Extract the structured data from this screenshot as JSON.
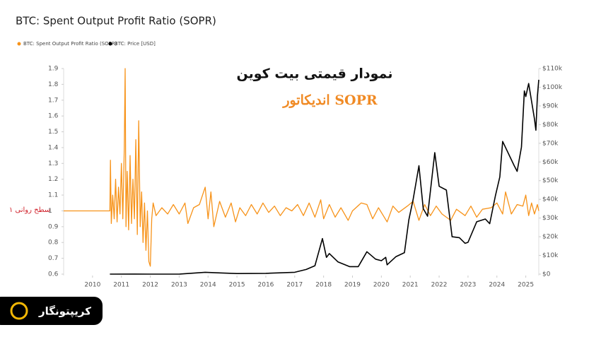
{
  "chart_data": {
    "type": "line",
    "title": "BTC: Spent Output Profit Ratio (SOPR)",
    "annotations": [
      "نمودار قیمتی بیت کوین",
      "اندیکاتور SOPR",
      "سطح روانی ۱"
    ],
    "logo": "کریپتونگار",
    "xlim": [
      2009,
      2025.45
    ],
    "xticks": [
      2010,
      2011,
      2012,
      2013,
      2014,
      2015,
      2016,
      2017,
      2018,
      2019,
      2020,
      2021,
      2022,
      2023,
      2024,
      2025
    ],
    "ylim": [
      0.6,
      1.9
    ],
    "yticks": [
      0.6,
      0.7,
      0.8,
      0.9,
      1,
      1.1,
      1.2,
      1.3,
      1.4,
      1.5,
      1.6,
      1.7,
      1.8,
      1.9
    ],
    "y2lim": [
      0,
      110000
    ],
    "y2ticks": [
      {
        "value": 0,
        "label": "$0"
      },
      {
        "value": 10000,
        "label": "$10k"
      },
      {
        "value": 20000,
        "label": "$20k"
      },
      {
        "value": 30000,
        "label": "$30k"
      },
      {
        "value": 40000,
        "label": "$40k"
      },
      {
        "value": 50000,
        "label": "$50k"
      },
      {
        "value": 60000,
        "label": "$60k"
      },
      {
        "value": 70000,
        "label": "$70k"
      },
      {
        "value": 80000,
        "label": "$80k"
      },
      {
        "value": 90000,
        "label": "$90k"
      },
      {
        "value": 100000,
        "label": "$100k"
      },
      {
        "value": 110000,
        "label": "$110k"
      }
    ],
    "series": [
      {
        "name": "BTC: Spent Output Profit Ratio (SOPR)",
        "color": "#f7931a",
        "axis": "y",
        "x": [
          2009.0,
          2010.6,
          2010.62,
          2010.65,
          2010.7,
          2010.75,
          2010.8,
          2010.85,
          2010.9,
          2010.95,
          2011.0,
          2011.05,
          2011.1,
          2011.13,
          2011.16,
          2011.2,
          2011.25,
          2011.3,
          2011.35,
          2011.4,
          2011.45,
          2011.5,
          2011.55,
          2011.6,
          2011.65,
          2011.7,
          2011.75,
          2011.8,
          2011.85,
          2011.9,
          2011.95,
          2012.0,
          2012.05,
          2012.1,
          2012.2,
          2012.4,
          2012.6,
          2012.8,
          2013.0,
          2013.2,
          2013.3,
          2013.5,
          2013.7,
          2013.9,
          2014.0,
          2014.1,
          2014.2,
          2014.4,
          2014.6,
          2014.8,
          2014.95,
          2015.1,
          2015.3,
          2015.5,
          2015.7,
          2015.9,
          2016.1,
          2016.3,
          2016.5,
          2016.7,
          2016.9,
          2017.1,
          2017.3,
          2017.5,
          2017.7,
          2017.9,
          2018.0,
          2018.2,
          2018.4,
          2018.6,
          2018.85,
          2019.0,
          2019.3,
          2019.5,
          2019.7,
          2019.9,
          2020.2,
          2020.4,
          2020.6,
          2020.9,
          2021.1,
          2021.3,
          2021.5,
          2021.7,
          2021.9,
          2022.1,
          2022.4,
          2022.6,
          2022.9,
          2023.1,
          2023.3,
          2023.5,
          2023.8,
          2024.0,
          2024.2,
          2024.3,
          2024.5,
          2024.7,
          2024.9,
          2025.0,
          2025.1,
          2025.2,
          2025.3,
          2025.4,
          2025.45
        ],
        "values": [
          1,
          1,
          1.32,
          0.92,
          1.1,
          0.95,
          1.2,
          0.93,
          1.15,
          0.98,
          1.3,
          0.95,
          1.4,
          1.9,
          0.9,
          1.25,
          0.88,
          1.35,
          0.92,
          1.2,
          0.95,
          1.45,
          0.85,
          1.57,
          0.9,
          1.12,
          0.8,
          1.05,
          0.75,
          1.0,
          0.68,
          0.65,
          0.95,
          1.05,
          0.97,
          1.02,
          0.98,
          1.04,
          0.98,
          1.05,
          0.92,
          1.02,
          1.04,
          1.15,
          0.95,
          1.12,
          0.9,
          1.06,
          0.96,
          1.05,
          0.93,
          1.02,
          0.97,
          1.04,
          0.98,
          1.05,
          0.99,
          1.03,
          0.97,
          1.02,
          1.0,
          1.04,
          0.97,
          1.05,
          0.96,
          1.07,
          0.95,
          1.04,
          0.96,
          1.02,
          0.94,
          1.0,
          1.05,
          1.04,
          0.95,
          1.02,
          0.93,
          1.03,
          0.99,
          1.03,
          1.06,
          0.94,
          1.04,
          0.97,
          1.03,
          0.98,
          0.94,
          1.01,
          0.97,
          1.03,
          0.96,
          1.01,
          1.02,
          1.05,
          0.98,
          1.12,
          0.98,
          1.04,
          1.03,
          1.1,
          0.97,
          1.05,
          0.98,
          1.04,
          1.0
        ]
      },
      {
        "name": "BTC: Price [USD]",
        "color": "#000000",
        "axis": "y2",
        "x": [
          2010.6,
          2011.45,
          2012.0,
          2013.0,
          2013.9,
          2014.5,
          2015.0,
          2016.0,
          2017.0,
          2017.4,
          2017.7,
          2017.96,
          2018.1,
          2018.2,
          2018.5,
          2018.9,
          2019.2,
          2019.5,
          2019.8,
          2020.0,
          2020.15,
          2020.2,
          2020.5,
          2020.8,
          2020.95,
          2021.1,
          2021.3,
          2021.45,
          2021.6,
          2021.85,
          2022.0,
          2022.25,
          2022.45,
          2022.7,
          2022.9,
          2023.0,
          2023.3,
          2023.6,
          2023.75,
          2023.95,
          2024.1,
          2024.2,
          2024.6,
          2024.7,
          2024.85,
          2024.95,
          2025.0,
          2025.1,
          2025.3,
          2025.35,
          2025.4,
          2025.45
        ],
        "values": [
          0.1,
          20,
          5,
          13,
          1000,
          600,
          300,
          400,
          1000,
          2500,
          4500,
          19000,
          9000,
          11000,
          6500,
          4000,
          4000,
          12000,
          8000,
          7200,
          9000,
          5000,
          9300,
          11500,
          29000,
          40000,
          58000,
          35000,
          31000,
          65000,
          47000,
          45000,
          20000,
          19500,
          16500,
          17000,
          28000,
          29500,
          27000,
          42000,
          52000,
          71000,
          58000,
          55000,
          68000,
          98000,
          95000,
          102000,
          83000,
          77000,
          95000,
          104000
        ]
      }
    ]
  }
}
